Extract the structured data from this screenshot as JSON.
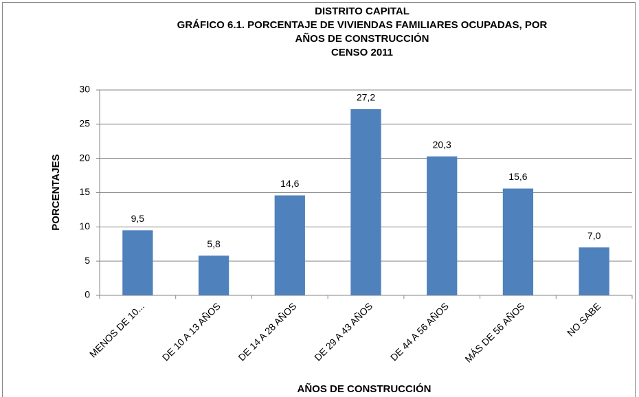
{
  "chart_data": {
    "type": "bar",
    "title": [
      "DISTRITO CAPITAL",
      "GRÁFICO 6.1. PORCENTAJE DE VIVIENDAS FAMILIARES OCUPADAS, POR",
      "AÑOS DE CONSTRUCCIÓN",
      "CENSO 2011"
    ],
    "x_label": "AÑOS DE CONSTRUCCIÓN",
    "y_label": "PORCENTAJES",
    "categories": [
      "MENOS DE 10...",
      "DE 10 A 13 AÑOS",
      "DE 14 A 28 AÑOS",
      "DE 29 A 43 AÑOS",
      "DE 44 A 56 AÑOS",
      "MÁS DE 56 AÑOS",
      "NO SABE"
    ],
    "values": [
      9.5,
      5.8,
      14.6,
      27.2,
      20.3,
      15.6,
      7.0
    ],
    "value_labels": [
      "9,5",
      "5,8",
      "14,6",
      "27,2",
      "20,3",
      "15,6",
      "7,0"
    ],
    "color": "#4f81bd",
    "ylim": [
      0,
      30
    ],
    "yticks": [
      0,
      5,
      10,
      15,
      20,
      25,
      30
    ],
    "grid": true
  }
}
